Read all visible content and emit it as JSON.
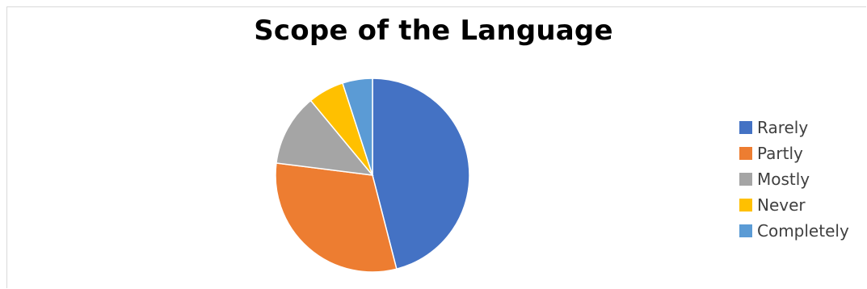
{
  "chart_data": {
    "type": "pie",
    "title": "Scope of the Language",
    "categories": [
      "Rarely",
      "Partly",
      "Mostly",
      "Never",
      "Completely"
    ],
    "values": [
      46,
      31,
      12,
      6,
      5
    ],
    "colors": [
      "#4472C4",
      "#ED7D31",
      "#A5A5A5",
      "#FFC000",
      "#5B9BD5"
    ],
    "legend_position": "right"
  }
}
